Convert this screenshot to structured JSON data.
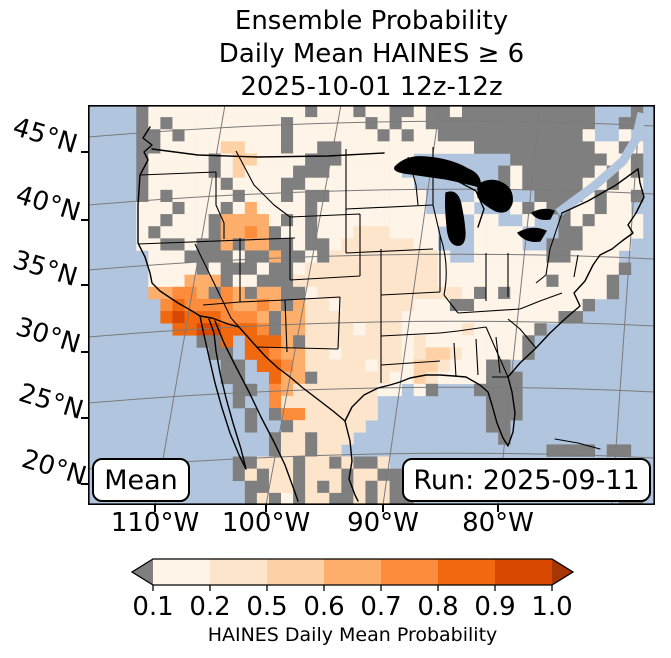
{
  "title": {
    "line1": "Ensemble Probability",
    "line2": "Daily Mean HAINES ≥ 6",
    "line3": "2025-10-01 12z-12z"
  },
  "map": {
    "lat_labels": [
      "45°N",
      "40°N",
      "35°N",
      "30°N",
      "25°N",
      "20°N"
    ],
    "lon_labels": [
      "110°W",
      "100°W",
      "90°W",
      "80°W"
    ],
    "mean_label": "Mean",
    "run_label": "Run: 2025-09-11"
  },
  "colorbar": {
    "title": "HAINES Daily Mean Probability",
    "tick_labels": [
      "0.1",
      "0.2",
      "0.5",
      "0.6",
      "0.7",
      "0.8",
      "0.9",
      "1.0"
    ],
    "segment_colors": [
      "#fef4e8",
      "#fde5cc",
      "#fdd1a5",
      "#fdae6b",
      "#fd8c3c",
      "#f1690e",
      "#d94801"
    ],
    "under_color": "#7f7f7f",
    "over_color": "#a63603"
  },
  "chart_data": {
    "type": "heatmap",
    "title": "Ensemble Probability Daily Mean HAINES ≥ 6 2025-10-01 12z-12z",
    "colorbar_label": "HAINES Daily Mean Probability",
    "levels": [
      0.1,
      0.2,
      0.5,
      0.6,
      0.7,
      0.8,
      0.9,
      1.0
    ],
    "under_value_color_meaning": "probability below 0.1 shown gray",
    "x_ticks": [
      "110°W",
      "100°W",
      "90°W",
      "80°W"
    ],
    "y_ticks": [
      "45°N",
      "40°N",
      "35°N",
      "30°N",
      "25°N",
      "20°N"
    ],
    "legend_position": "bottom",
    "annotations": [
      "Mean",
      "Run: 2025-09-11"
    ],
    "grid": {
      "ocean_color": "#b2c5de",
      "palette": {
        "g": "#7f7f7f",
        "1": "#fef4e8",
        "2": "#fde5cc",
        "3": "#fdd1a5",
        "4": "#fdae6b",
        "5": "#fd8c3c",
        "6": "#f1690e",
        "7": "#d94801"
      },
      "rows": [
        "~~~~g1111111111111g111g11gg1gg1ggggggggggg~~~g~",
        "~~~~g1g111111111g111111g1g11gggggggggggggg~~gg~",
        "~~~~gg1g11111111g1111111g1g11gggggggggggg1~~1~~",
        "~~~~gg1111133111g11gg11111111111gggggggggg11g1~",
        "~~~~g11111g1331111ggg111111~~~~~~~~gggggggg11g~",
        "~~~~g11111g131111ggg111111~~~~~~~~g1gggggg1g1g~",
        "~~~~g111111g1111gg111111111~~~~~~~g1ggggg11g11~",
        "~~~~g1g11111g111g1gg11111111~~~~1~~~~gggg1g11g~",
        "~~~~111g111g141111g111111111~~~1~~~1g1gg11g11~~",
        "~~~~11g111g44441g1g11111111111~~11~~1~~g1g1111~",
        "~~~~1g1111g4454g11g1112221111~~~1111~~~gg11111~",
        "~~~~11gg1gg4g44gg1gg122222211~~~1111~~ggg1111~~",
        "~~~~~111gggg1gg4gg1g2222222221~~111111gg1111~~~",
        "~~~~~1111g1ggg1gg122222222222111111111111111g~~",
        "~~~~~111444g11ggg222222222222111111111g1111g~~~",
        "~~~~~44554g54g44gg12222222222221g1g11111111g~~~",
        "~~~~~~5655554454g4221222222111gg111111111g~~~~~",
        "~~~~~~676665554g44222222221111111111111gg~~~~~~",
        "~~~~~~~66776665g442222122211111211111g~~~~~~~~~",
        "~~~~~~~~~gg6~6664g222222221211111111g~~~~~~~~~~",
        "~~~~~~~~~~gg~66544221222221233211111g~~~~~~~~~~",
        "~~~~~~~~~~~gg~6654222221221332111gg~~~~~~~~~~~~",
        "~~~~~~~~~~~gg~~644g22222211321111ggg~~~~~~~~~~~",
        "~~~~~~~~~~~~gg~54222222211 1g~~~gggg~~~~~~~~~~~",
        "~~~~~~~~~~~~g~~522222222~~~~~~~~~ggg~~~~~~~~~~~",
        "~~~~~~~~~~~~~g~g55222222~~~~~~~~~ggg~~~~~~~~~~~",
        "~~~~~~~~~~~~~g~~g222222~~~~~~~~~~gg~~~~~~~~~~~~",
        "~~~~~~~~~~~~~~~g22g222~~~~~~~~~~~~g~~~~~~~~~~~~",
        "~~~~~~~~~~~~~~~g22g22~~~~~~~~~~~~~~~~~gggg~gg~~",
        "~~~~~~~~~~~~gg222g22g2gg2~~~~~~~~~~~~~~~~~~~~~~",
        "~~~~~~~~~~~~g2g22g222g22gg~~~~~~~~~~~~~~~~~~~~~",
        "~~~~~~~~~~~~~gg22g2g2g2g2g~~~~~~~~~~~~~~~~~~~~~",
        "~~~~~~~~~~~~~g2g1g22gg2g2gg~~~~~~~~~~~~~~~~~gg~"
      ]
    }
  }
}
